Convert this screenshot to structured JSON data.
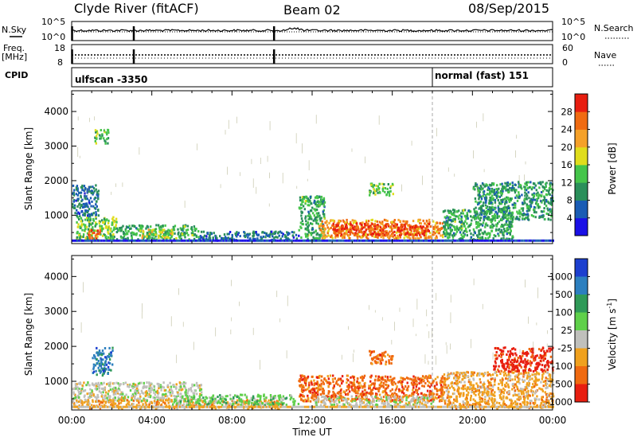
{
  "header": {
    "station": "Clyde River (fitACF)",
    "beam": "Beam 02",
    "date": "08/Sep/2015"
  },
  "status_panel": {
    "left_label_top": "N.Sky",
    "left_label_mid_1": "Freq.",
    "left_label_mid_2": "[MHz]",
    "left_label_bottom": "CPID",
    "right_label_top": "N.Search",
    "right_label_mid": "Nave",
    "nsky_ticks": [
      "10^5",
      "10^0"
    ],
    "nsearch_ticks": [
      "10^5",
      "10^0"
    ],
    "freq_ticks": [
      "18",
      "8"
    ],
    "nave_ticks": [
      "60",
      "0"
    ],
    "cpid_segments": [
      {
        "label": "ulfscan -3350",
        "start_hour": 0
      },
      {
        "label": "normal (fast) 151",
        "start_hour": 18.0
      }
    ]
  },
  "chart_data": [
    {
      "type": "heatmap",
      "name": "power-panel",
      "xlabel": "",
      "ylabel": "Slant Range [km]",
      "xlim": [
        0,
        24
      ],
      "ylim": [
        180,
        4600
      ],
      "yticks": [
        1000,
        2000,
        3000,
        4000
      ],
      "colorbar": {
        "label": "Power [dB]",
        "ticks": [
          "4",
          "8",
          "12",
          "16",
          "20",
          "24",
          "28"
        ],
        "colors": [
          "#1a10e6",
          "#1a5cb4",
          "#2a8f5a",
          "#45c54a",
          "#e0dd1c",
          "#f5a12a",
          "#f06b12",
          "#e81e10"
        ],
        "range": [
          0,
          32
        ]
      },
      "regions": [
        {
          "t0": 0.2,
          "t1": 2.2,
          "r0": 300,
          "r1": 1000,
          "level": 0.45
        },
        {
          "t0": 0.8,
          "t1": 1.4,
          "r0": 300,
          "r1": 600,
          "level": 0.9
        },
        {
          "t0": 2.2,
          "t1": 6.3,
          "r0": 330,
          "r1": 750,
          "level": 0.35
        },
        {
          "t0": 3.3,
          "t1": 5.0,
          "r0": 380,
          "r1": 620,
          "level": 0.55
        },
        {
          "t0": 6.3,
          "t1": 11.3,
          "r0": 300,
          "r1": 560,
          "level": 0.2
        },
        {
          "t0": 11.3,
          "t1": 12.6,
          "r0": 300,
          "r1": 1600,
          "level": 0.35
        },
        {
          "t0": 12.3,
          "t1": 18.5,
          "r0": 350,
          "r1": 900,
          "level": 0.75
        },
        {
          "t0": 13.0,
          "t1": 17.8,
          "r0": 450,
          "r1": 800,
          "level": 0.95
        },
        {
          "t0": 14.8,
          "t1": 16.0,
          "r0": 1600,
          "r1": 1950,
          "level": 0.4
        },
        {
          "t0": 18.5,
          "t1": 22.0,
          "r0": 300,
          "r1": 1200,
          "level": 0.35
        },
        {
          "t0": 20.0,
          "t1": 24.0,
          "r0": 900,
          "r1": 2000,
          "level": 0.3
        },
        {
          "t0": 0.0,
          "t1": 1.3,
          "r0": 1000,
          "r1": 1900,
          "level": 0.2
        },
        {
          "t0": 1.1,
          "t1": 1.8,
          "r0": 3100,
          "r1": 3500,
          "level": 0.4
        }
      ]
    },
    {
      "type": "heatmap",
      "name": "velocity-panel",
      "xlabel": "Time UT",
      "ylabel": "Slant Range [km]",
      "xlim": [
        0,
        24
      ],
      "ylim": [
        180,
        4600
      ],
      "xtick_labels": [
        "00:00",
        "04:00",
        "08:00",
        "12:00",
        "16:00",
        "20:00",
        "00:00"
      ],
      "yticks": [
        1000,
        2000,
        3000,
        4000
      ],
      "colorbar": {
        "label": "Velocity [m s^-1]",
        "ticks": [
          "1000",
          "500",
          "100",
          "25",
          "-25",
          "-100",
          "-500",
          "-1000"
        ],
        "colors": [
          "#1c3fcf",
          "#2c7fbf",
          "#2f9a58",
          "#5fd04a",
          "#c0c0bc",
          "#f0a11e",
          "#f06a10",
          "#e81e10"
        ]
      },
      "regions": [
        {
          "t0": 0.0,
          "t1": 6.5,
          "r0": 450,
          "r1": 1000,
          "cls": 4
        },
        {
          "t0": 0.0,
          "t1": 10.5,
          "r0": 250,
          "r1": 500,
          "cls": 5
        },
        {
          "t0": 5.0,
          "t1": 11.3,
          "r0": 350,
          "r1": 650,
          "cls": 3
        },
        {
          "t0": 11.3,
          "t1": 18.5,
          "r0": 450,
          "r1": 1200,
          "cls": 6
        },
        {
          "t0": 12.0,
          "t1": 18.0,
          "r0": 300,
          "r1": 600,
          "cls": 4
        },
        {
          "t0": 14.8,
          "t1": 16.0,
          "r0": 1500,
          "r1": 1900,
          "cls": 6
        },
        {
          "t0": 18.5,
          "t1": 24.0,
          "r0": 250,
          "r1": 1300,
          "cls": 5
        },
        {
          "t0": 21.0,
          "t1": 24.0,
          "r0": 1300,
          "r1": 2000,
          "cls": 7
        },
        {
          "t0": 1.0,
          "t1": 2.0,
          "r0": 1200,
          "r1": 2000,
          "cls": 1
        }
      ]
    }
  ]
}
